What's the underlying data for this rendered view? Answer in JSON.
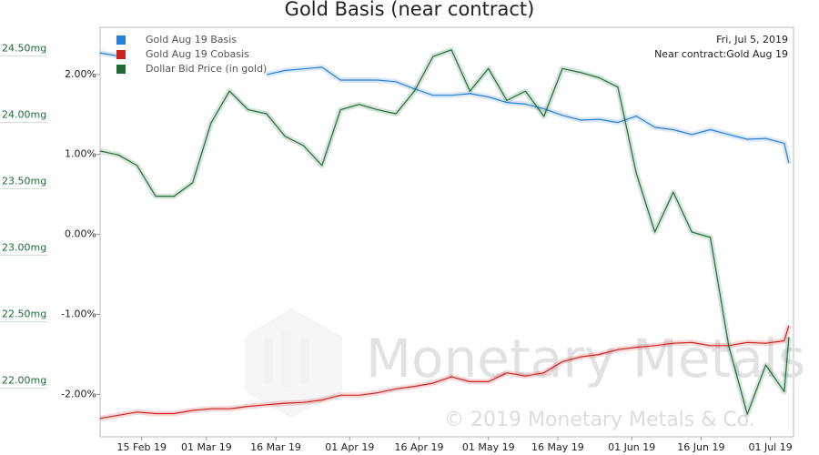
{
  "chart_data": {
    "type": "line",
    "title": "Gold Basis (near contract)",
    "date_label": "Fri, Jul 5, 2019",
    "contract_label": "Near contract:Gold Aug 19",
    "watermark": "Monetary Metals",
    "copyright": "© 2019 Monetary Metals & Co.",
    "x": [
      "2019-02-06",
      "2019-02-10",
      "2019-02-14",
      "2019-02-18",
      "2019-02-22",
      "2019-02-26",
      "2019-03-02",
      "2019-03-06",
      "2019-03-10",
      "2019-03-14",
      "2019-03-18",
      "2019-03-22",
      "2019-03-26",
      "2019-03-30",
      "2019-04-03",
      "2019-04-07",
      "2019-04-11",
      "2019-04-15",
      "2019-04-19",
      "2019-04-23",
      "2019-04-27",
      "2019-05-01",
      "2019-05-05",
      "2019-05-09",
      "2019-05-13",
      "2019-05-17",
      "2019-05-21",
      "2019-05-25",
      "2019-05-29",
      "2019-06-02",
      "2019-06-06",
      "2019-06-10",
      "2019-06-14",
      "2019-06-18",
      "2019-06-22",
      "2019-06-26",
      "2019-06-30",
      "2019-07-04",
      "2019-07-05"
    ],
    "xlim": [
      "2019-02-06",
      "2019-07-06"
    ],
    "xticks": [
      {
        "value": "2019-02-15",
        "label": "15 Feb 19"
      },
      {
        "value": "2019-03-01",
        "label": "01 Mar 19"
      },
      {
        "value": "2019-03-16",
        "label": "16 Mar 19"
      },
      {
        "value": "2019-04-01",
        "label": "01 Apr 19"
      },
      {
        "value": "2019-04-16",
        "label": "16 Apr 19"
      },
      {
        "value": "2019-05-01",
        "label": "01 May 19"
      },
      {
        "value": "2019-05-16",
        "label": "16 May 19"
      },
      {
        "value": "2019-06-01",
        "label": "01 Jun 19"
      },
      {
        "value": "2019-06-16",
        "label": "16 Jun 19"
      },
      {
        "value": "2019-07-01",
        "label": "01 Jul 19"
      }
    ],
    "ylim": [
      -2.53,
      2.59
    ],
    "yticks": [
      {
        "value": 2,
        "label": "2.00%"
      },
      {
        "value": 1,
        "label": "1.00%"
      },
      {
        "value": 0,
        "label": "0.00%"
      },
      {
        "value": -1,
        "label": "-1.00%"
      },
      {
        "value": -2,
        "label": "-2.00%"
      }
    ],
    "y2lim": [
      21.58,
      24.66
    ],
    "y2ticks": [
      {
        "value": 24.5,
        "label": "24.50mg"
      },
      {
        "value": 24,
        "label": "24.00mg"
      },
      {
        "value": 23.5,
        "label": "23.50mg"
      },
      {
        "value": 23,
        "label": "23.00mg"
      },
      {
        "value": 22.5,
        "label": "22.50mg"
      },
      {
        "value": 22,
        "label": "22.00mg"
      }
    ],
    "grid": false,
    "legend": "top-left",
    "series": [
      {
        "name": "Gold Aug 19 Basis",
        "color": "#2a7fd4",
        "values": [
          2.27,
          2.23,
          null,
          null,
          null,
          null,
          null,
          null,
          null,
          2.0,
          2.05,
          2.07,
          2.09,
          1.93,
          1.93,
          1.93,
          1.91,
          1.82,
          1.74,
          1.74,
          1.76,
          1.72,
          1.65,
          1.63,
          1.57,
          1.49,
          1.43,
          1.44,
          1.4,
          1.48,
          1.34,
          1.31,
          1.25,
          1.31,
          1.25,
          1.19,
          1.2,
          1.14,
          0.89
        ]
      },
      {
        "name": "Gold Aug 19 Cobasis",
        "color": "#cc2222",
        "values": [
          -2.3,
          -2.26,
          -2.22,
          -2.24,
          -2.24,
          -2.2,
          -2.18,
          -2.18,
          -2.15,
          -2.13,
          -2.11,
          -2.1,
          -2.07,
          -2.01,
          -2.01,
          -1.98,
          -1.93,
          -1.9,
          -1.86,
          -1.78,
          -1.84,
          -1.84,
          -1.73,
          -1.77,
          -1.73,
          -1.59,
          -1.53,
          -1.5,
          -1.44,
          -1.41,
          -1.39,
          -1.36,
          -1.35,
          -1.39,
          -1.39,
          -1.35,
          -1.36,
          -1.33,
          -1.14
        ]
      },
      {
        "name": "Dollar Bid Price (in gold)",
        "color": "#1e6b35",
        "axis": "y2",
        "values": [
          23.73,
          23.7,
          23.62,
          23.39,
          23.39,
          23.49,
          23.94,
          24.18,
          24.04,
          24.01,
          23.84,
          23.77,
          23.62,
          24.04,
          24.08,
          24.04,
          24.01,
          24.18,
          24.44,
          24.49,
          24.18,
          24.35,
          24.11,
          24.18,
          23.99,
          24.35,
          24.32,
          24.28,
          24.21,
          23.56,
          23.12,
          23.42,
          23.12,
          23.08,
          22.26,
          21.75,
          22.12,
          21.92,
          22.33
        ]
      }
    ]
  }
}
